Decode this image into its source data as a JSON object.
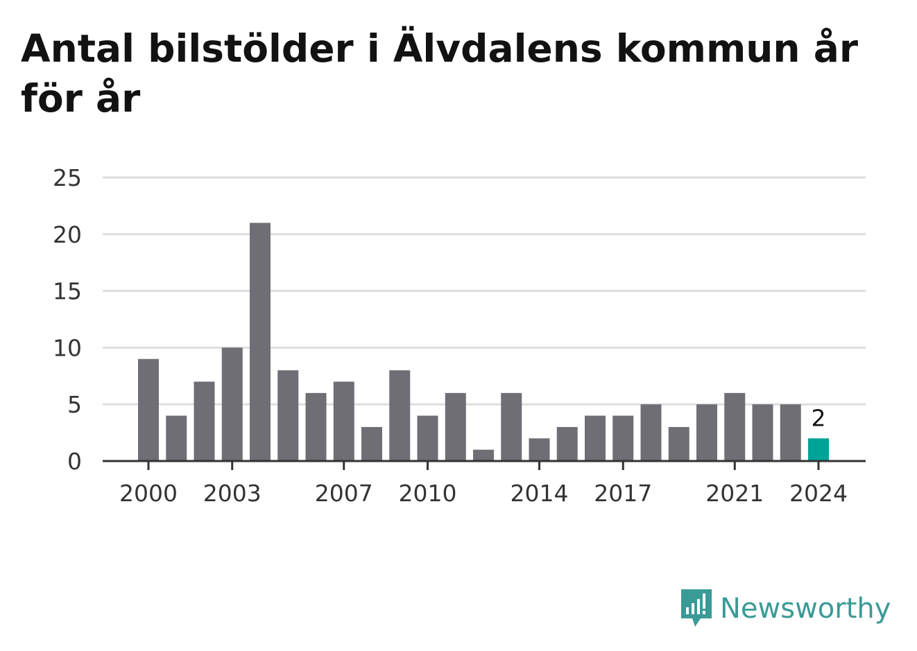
{
  "chart_data": {
    "type": "bar",
    "title": "Antal bilstölder i Älvdalens kommun år för år",
    "xlabel": "",
    "ylabel": "",
    "ylim": [
      0,
      25
    ],
    "yticks": [
      0,
      5,
      10,
      15,
      20,
      25
    ],
    "xtick_labels": [
      "2000",
      "2003",
      "2007",
      "2010",
      "2014",
      "2017",
      "2021",
      "2024"
    ],
    "categories": [
      "2000",
      "2001",
      "2002",
      "2003",
      "2004",
      "2005",
      "2006",
      "2007",
      "2008",
      "2009",
      "2010",
      "2011",
      "2012",
      "2013",
      "2014",
      "2015",
      "2016",
      "2017",
      "2018",
      "2019",
      "2020",
      "2021",
      "2022",
      "2023",
      "2024"
    ],
    "values": [
      9,
      4,
      7,
      10,
      21,
      8,
      6,
      7,
      3,
      8,
      4,
      6,
      1,
      6,
      2,
      3,
      4,
      4,
      5,
      3,
      5,
      6,
      5,
      5,
      2
    ],
    "highlight": {
      "category": "2024",
      "label": "2"
    },
    "grid": true,
    "colors": {
      "bar": "#6f6e74",
      "highlight": "#00a398",
      "grid": "#dddddd",
      "axis": "#333333"
    }
  },
  "brand": {
    "name": "Newsworthy",
    "icon": "newsworthy-logo-icon",
    "color": "#3a9a96"
  }
}
